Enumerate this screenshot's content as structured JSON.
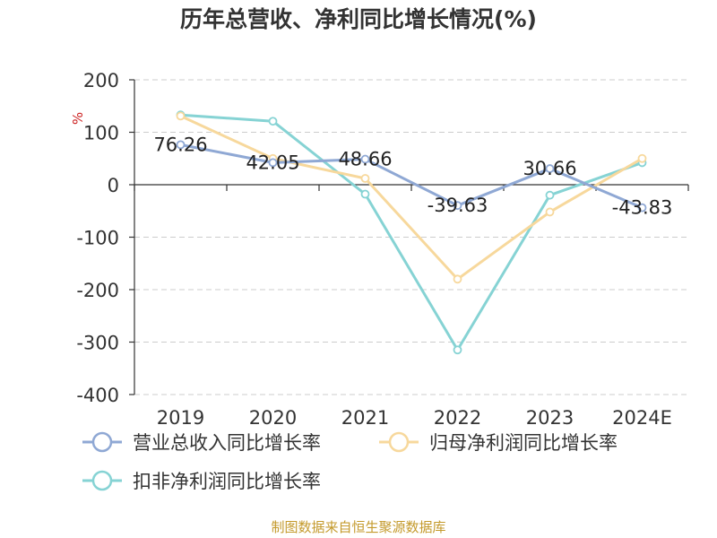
{
  "chart_data": {
    "type": "line",
    "title": "历年总营收、净利同比增长情况(%)",
    "ylabel": "%",
    "categories": [
      "2019",
      "2020",
      "2021",
      "2022",
      "2023",
      "2024E"
    ],
    "ylim": [
      -400,
      200
    ],
    "yticks": [
      200,
      100,
      0,
      -100,
      -200,
      -300,
      -400
    ],
    "grid": true,
    "legend_position": "bottom",
    "series": [
      {
        "name": "营业总收入同比增长率",
        "color": "#8fa8d4",
        "values": [
          76.26,
          42.05,
          48.66,
          -39.63,
          30.66,
          -43.83
        ],
        "labels": [
          "76.26",
          "42.05",
          "48.66",
          "-39.63",
          "30.66",
          "-43.83"
        ]
      },
      {
        "name": "归母净利润同比增长率",
        "color": "#f7d89c",
        "values": [
          131,
          50,
          12,
          -180,
          -52,
          50
        ]
      },
      {
        "name": "扣非净利润同比增长率",
        "color": "#86d3d4",
        "values": [
          133,
          121,
          -18,
          -315,
          -20,
          42
        ]
      }
    ]
  },
  "footer": {
    "source": "制图数据来自恒生聚源数据库"
  }
}
